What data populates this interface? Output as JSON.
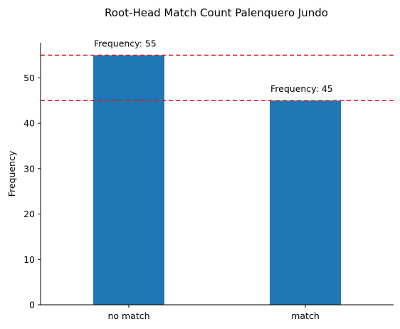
{
  "chart_data": {
    "type": "bar",
    "title": "Root-Head Match Count Palenquero Jundo",
    "xlabel": "",
    "ylabel": "Frequency",
    "categories": [
      "no match",
      "match"
    ],
    "values": [
      55,
      45
    ],
    "data_labels": [
      "Frequency: 55",
      "Frequency: 45"
    ],
    "ylim": [
      0,
      57.75
    ],
    "yticks": [
      0,
      10,
      20,
      30,
      40,
      50
    ],
    "reference_lines": [
      55,
      45
    ],
    "bar_color": "#1f77b4",
    "reference_line_color": "#e31a1c",
    "grid": false,
    "legend": "none"
  }
}
